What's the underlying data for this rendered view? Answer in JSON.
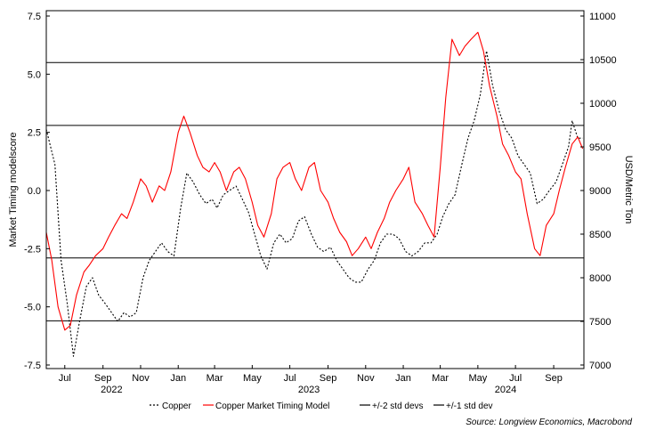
{
  "chart_data": {
    "type": "line",
    "title": "",
    "ylabel_left": "Market Timing modelscore",
    "ylabel_right": "USD/Metric Ton",
    "source": "Source: Longview Economics, Macrobond",
    "yleft_ticks": [
      "7.5",
      "5.0",
      "2.5",
      "0.0",
      "-2.5",
      "-5.0",
      "-7.5"
    ],
    "yleft_tick_values": [
      7.5,
      5.0,
      2.5,
      0.0,
      -2.5,
      -5.0,
      -7.5
    ],
    "yleft_range": [
      -7.5,
      7.5
    ],
    "yright_ticks": [
      "11000",
      "10500",
      "10000",
      "9500",
      "9000",
      "8500",
      "8000",
      "7500",
      "7000"
    ],
    "yright_tick_values": [
      11000,
      10500,
      10000,
      9500,
      9000,
      8500,
      8000,
      7500,
      7000
    ],
    "yright_range": [
      7000,
      11000
    ],
    "x_range": [
      "2022-06-01",
      "2024-10-20"
    ],
    "x_month_ticks": [
      {
        "date": "2022-07-01",
        "label": "Jul"
      },
      {
        "date": "2022-09-01",
        "label": "Sep"
      },
      {
        "date": "2022-11-01",
        "label": "Nov"
      },
      {
        "date": "2023-01-01",
        "label": "Jan"
      },
      {
        "date": "2023-03-01",
        "label": "Mar"
      },
      {
        "date": "2023-05-01",
        "label": "May"
      },
      {
        "date": "2023-07-01",
        "label": "Jul"
      },
      {
        "date": "2023-09-01",
        "label": "Sep"
      },
      {
        "date": "2023-11-01",
        "label": "Nov"
      },
      {
        "date": "2024-01-01",
        "label": "Jan"
      },
      {
        "date": "2024-03-01",
        "label": "Mar"
      },
      {
        "date": "2024-05-01",
        "label": "May"
      },
      {
        "date": "2024-07-01",
        "label": "Jul"
      },
      {
        "date": "2024-09-01",
        "label": "Sep"
      }
    ],
    "x_year_labels": [
      {
        "date": "2022-09-15",
        "label": "2022"
      },
      {
        "date": "2023-08-01",
        "label": "2023"
      },
      {
        "date": "2024-06-15",
        "label": "2024"
      }
    ],
    "reference_lines": [
      {
        "name": "+/-2 std devs",
        "values": [
          5.5,
          -5.6
        ]
      },
      {
        "name": "+/-1 std dev",
        "values": [
          2.8,
          -2.9
        ]
      }
    ],
    "series": [
      {
        "name": "Copper",
        "axis": "right",
        "color": "#000000",
        "style": "dotted",
        "x": [
          "2022-06-01",
          "2022-06-15",
          "2022-06-25",
          "2022-07-05",
          "2022-07-15",
          "2022-07-25",
          "2022-08-05",
          "2022-08-15",
          "2022-08-25",
          "2022-09-05",
          "2022-09-15",
          "2022-09-25",
          "2022-10-05",
          "2022-10-15",
          "2022-10-25",
          "2022-11-05",
          "2022-11-15",
          "2022-11-25",
          "2022-12-05",
          "2022-12-15",
          "2022-12-25",
          "2023-01-05",
          "2023-01-15",
          "2023-01-25",
          "2023-02-05",
          "2023-02-15",
          "2023-02-25",
          "2023-03-05",
          "2023-03-15",
          "2023-03-25",
          "2023-04-05",
          "2023-04-15",
          "2023-04-25",
          "2023-05-05",
          "2023-05-15",
          "2023-05-25",
          "2023-06-05",
          "2023-06-15",
          "2023-06-25",
          "2023-07-05",
          "2023-07-15",
          "2023-07-25",
          "2023-08-05",
          "2023-08-15",
          "2023-08-25",
          "2023-09-05",
          "2023-09-15",
          "2023-09-25",
          "2023-10-05",
          "2023-10-15",
          "2023-10-25",
          "2023-11-05",
          "2023-11-15",
          "2023-11-25",
          "2023-12-05",
          "2023-12-15",
          "2023-12-25",
          "2024-01-05",
          "2024-01-15",
          "2024-01-25",
          "2024-02-05",
          "2024-02-15",
          "2024-02-25",
          "2024-03-05",
          "2024-03-15",
          "2024-03-25",
          "2024-04-05",
          "2024-04-15",
          "2024-04-25",
          "2024-05-05",
          "2024-05-15",
          "2024-05-25",
          "2024-06-05",
          "2024-06-15",
          "2024-06-25",
          "2024-07-05",
          "2024-07-15",
          "2024-07-25",
          "2024-08-05",
          "2024-08-15",
          "2024-08-25",
          "2024-09-05",
          "2024-09-15",
          "2024-09-25",
          "2024-10-01",
          "2024-10-10",
          "2024-10-18"
        ],
        "values": [
          9700,
          9300,
          8200,
          7700,
          7100,
          7500,
          7900,
          8000,
          7800,
          7700,
          7600,
          7500,
          7600,
          7550,
          7600,
          8000,
          8200,
          8300,
          8400,
          8300,
          8250,
          8800,
          9200,
          9100,
          8950,
          8850,
          8900,
          8800,
          8950,
          9000,
          9050,
          8900,
          8750,
          8500,
          8250,
          8100,
          8400,
          8500,
          8400,
          8450,
          8650,
          8700,
          8500,
          8350,
          8300,
          8350,
          8200,
          8100,
          8000,
          7950,
          7950,
          8100,
          8200,
          8400,
          8500,
          8500,
          8450,
          8300,
          8250,
          8300,
          8400,
          8400,
          8500,
          8700,
          8850,
          8950,
          9300,
          9600,
          9800,
          10100,
          10600,
          10200,
          9900,
          9700,
          9600,
          9400,
          9300,
          9200,
          8850,
          8900,
          9000,
          9100,
          9300,
          9500,
          9800,
          9600,
          9600
        ]
      },
      {
        "name": "Copper Market Timing Model",
        "axis": "left",
        "color": "#ff0000",
        "style": "solid",
        "x": [
          "2022-06-01",
          "2022-06-10",
          "2022-06-20",
          "2022-07-01",
          "2022-07-10",
          "2022-07-20",
          "2022-08-01",
          "2022-08-10",
          "2022-08-20",
          "2022-09-01",
          "2022-09-10",
          "2022-09-20",
          "2022-10-01",
          "2022-10-10",
          "2022-10-20",
          "2022-11-01",
          "2022-11-10",
          "2022-11-20",
          "2022-12-01",
          "2022-12-10",
          "2022-12-20",
          "2023-01-01",
          "2023-01-10",
          "2023-01-20",
          "2023-02-01",
          "2023-02-10",
          "2023-02-20",
          "2023-03-01",
          "2023-03-10",
          "2023-03-20",
          "2023-04-01",
          "2023-04-10",
          "2023-04-20",
          "2023-05-01",
          "2023-05-10",
          "2023-05-20",
          "2023-06-01",
          "2023-06-10",
          "2023-06-20",
          "2023-07-01",
          "2023-07-10",
          "2023-07-20",
          "2023-08-01",
          "2023-08-10",
          "2023-08-20",
          "2023-09-01",
          "2023-09-10",
          "2023-09-20",
          "2023-10-01",
          "2023-10-10",
          "2023-10-20",
          "2023-11-01",
          "2023-11-10",
          "2023-11-20",
          "2023-12-01",
          "2023-12-10",
          "2023-12-20",
          "2024-01-01",
          "2024-01-10",
          "2024-01-20",
          "2024-02-01",
          "2024-02-10",
          "2024-02-20",
          "2024-03-01",
          "2024-03-10",
          "2024-03-20",
          "2024-04-01",
          "2024-04-10",
          "2024-04-20",
          "2024-05-01",
          "2024-05-10",
          "2024-05-20",
          "2024-06-01",
          "2024-06-10",
          "2024-06-20",
          "2024-07-01",
          "2024-07-10",
          "2024-07-20",
          "2024-08-01",
          "2024-08-10",
          "2024-08-20",
          "2024-09-01",
          "2024-09-10",
          "2024-09-20",
          "2024-10-01",
          "2024-10-10",
          "2024-10-18"
        ],
        "values": [
          -1.8,
          -3.0,
          -5.0,
          -6.0,
          -5.8,
          -4.5,
          -3.5,
          -3.2,
          -2.8,
          -2.5,
          -2.0,
          -1.5,
          -1.0,
          -1.2,
          -0.5,
          0.5,
          0.2,
          -0.5,
          0.2,
          0.0,
          0.8,
          2.5,
          3.2,
          2.5,
          1.5,
          1.0,
          0.8,
          1.2,
          0.8,
          0.0,
          0.8,
          1.0,
          0.5,
          -0.5,
          -1.5,
          -2.0,
          -1.0,
          0.5,
          1.0,
          1.2,
          0.5,
          0.0,
          1.0,
          1.2,
          0.0,
          -0.5,
          -1.2,
          -1.8,
          -2.2,
          -2.8,
          -2.5,
          -2.0,
          -2.5,
          -1.8,
          -1.2,
          -0.5,
          0.0,
          0.5,
          1.0,
          -0.5,
          -1.0,
          -1.5,
          -2.0,
          1.0,
          4.0,
          6.5,
          5.8,
          6.2,
          6.5,
          6.8,
          6.0,
          4.5,
          3.2,
          2.0,
          1.5,
          0.8,
          0.5,
          -1.0,
          -2.5,
          -2.8,
          -1.5,
          -1.0,
          0.0,
          1.0,
          2.0,
          2.3,
          1.8
        ]
      }
    ],
    "legend": {
      "placement": "bottom",
      "entries": [
        "Copper",
        "Copper Market Timing Model",
        "+/-2 std devs",
        "+/-1 std dev"
      ]
    }
  }
}
